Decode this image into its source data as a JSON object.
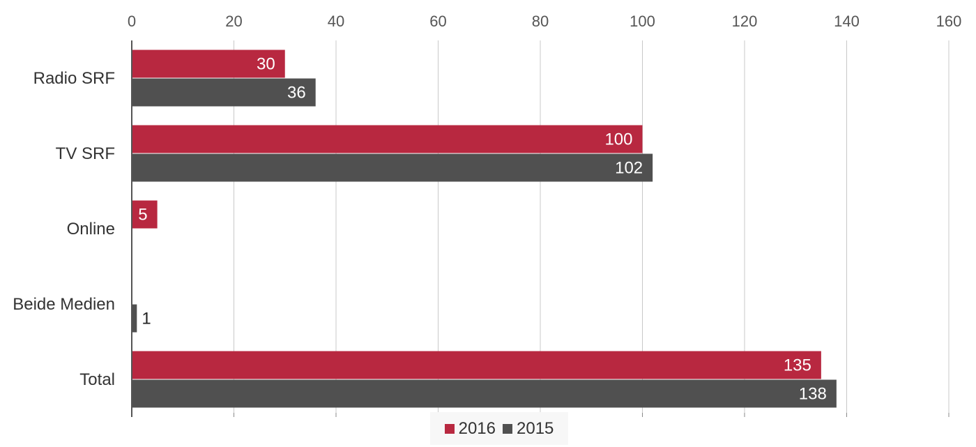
{
  "chart_data": {
    "type": "bar",
    "orientation": "horizontal",
    "categories": [
      "Radio SRF",
      "TV SRF",
      "Online",
      "Beide Medien",
      "Total"
    ],
    "series": [
      {
        "name": "2016",
        "color": "#b82840",
        "values": [
          30,
          100,
          5,
          null,
          135
        ]
      },
      {
        "name": "2015",
        "color": "#505050",
        "values": [
          36,
          102,
          null,
          1,
          138
        ]
      }
    ],
    "xlim": [
      0,
      160
    ],
    "xticks": [
      0,
      20,
      40,
      60,
      80,
      100,
      120,
      140,
      160
    ],
    "grid": true,
    "legend": "bottom-center"
  }
}
